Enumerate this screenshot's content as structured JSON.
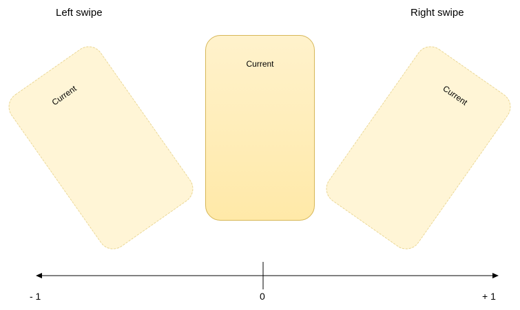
{
  "headings": {
    "left": "Left swipe",
    "right": "Right swipe"
  },
  "cards": {
    "left": {
      "label": "Current"
    },
    "center": {
      "label": "Current"
    },
    "right": {
      "label": "Current"
    }
  },
  "axis": {
    "min_label": "- 1",
    "center_label": "0",
    "max_label": "+ 1"
  },
  "colors": {
    "card_fill": "#fff2cc",
    "card_border": "#d6b656",
    "ghost_fill": "#fff5d6",
    "ghost_border": "#e8d48f",
    "axis": "#000000"
  }
}
